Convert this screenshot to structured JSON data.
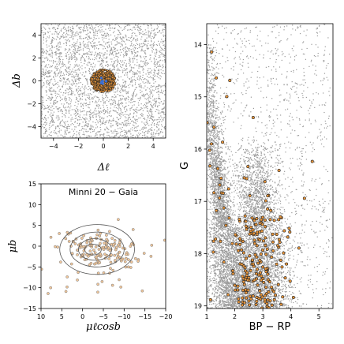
{
  "chart_data": [
    {
      "type": "scatter",
      "panel": "spatial",
      "xlabel": "Δℓ",
      "ylabel": "Δb",
      "xlim": [
        -5,
        5
      ],
      "ylim": [
        -5,
        5
      ],
      "xticks": [
        -4,
        -2,
        0,
        2,
        4
      ],
      "yticks": [
        -4,
        -2,
        0,
        2,
        4
      ],
      "xtick_labels": [
        "−4",
        "−2",
        "0",
        "2",
        "4"
      ],
      "ytick_labels": [
        "−4",
        "−2",
        "0",
        "2",
        "4"
      ],
      "series": [
        {
          "color": "#9a9a9a",
          "field_density": "uniform",
          "count": 3200
        },
        {
          "color": "#e8963c",
          "edge": "#222222",
          "center": [
            0,
            0
          ],
          "radius": 1.0,
          "count": 420
        },
        {
          "color": "#3a6fd6",
          "center": [
            -0.05,
            0.05
          ],
          "count": 6
        }
      ]
    },
    {
      "type": "scatter",
      "panel": "proper-motion",
      "annotation": "Minni 20  −  Gaia",
      "xlabel": "μℓcosb",
      "ylabel": "μb",
      "xlim": [
        10,
        -20
      ],
      "ylim": [
        -15,
        15
      ],
      "xticks": [
        10,
        5,
        0,
        -5,
        -10,
        -15,
        -20
      ],
      "yticks": [
        -15,
        -10,
        -5,
        0,
        5,
        10,
        15
      ],
      "xtick_labels": [
        "10",
        "5",
        "0",
        "−5",
        "−10",
        "−15",
        "−20"
      ],
      "ytick_labels": [
        "−15",
        "−10",
        "−5",
        "0",
        "5",
        "10",
        "15"
      ],
      "contours": [
        {
          "center": [
            -3.5,
            -0.8
          ],
          "rx": 9.0,
          "ry": 6.0
        },
        {
          "center": [
            -3.5,
            -0.8
          ],
          "rx": 6.5,
          "ry": 4.2
        },
        {
          "center": [
            -3.0,
            -0.8
          ],
          "rx": 4.0,
          "ry": 2.6
        },
        {
          "center": [
            -2.5,
            -0.8
          ],
          "rx": 2.0,
          "ry": 1.3
        }
      ],
      "series": [
        {
          "color": "#f2c79a",
          "edge": "#777777",
          "center": [
            -4,
            -1
          ],
          "spread": [
            4.5,
            3
          ],
          "count": 190
        }
      ]
    },
    {
      "type": "scatter",
      "panel": "cmd",
      "xlabel": "BP − RP",
      "ylabel": "G",
      "xlim": [
        1,
        5.5
      ],
      "ylim": [
        19.05,
        13.6
      ],
      "xticks": [
        1,
        2,
        3,
        4,
        5
      ],
      "yticks": [
        14,
        15,
        16,
        17,
        18,
        19
      ],
      "xtick_labels": [
        "1",
        "2",
        "3",
        "4",
        "5"
      ],
      "ytick_labels": [
        "14",
        "15",
        "16",
        "17",
        "18",
        "19"
      ],
      "series": [
        {
          "color": "#9a9a9a",
          "count": 9000
        },
        {
          "color": "#e8963c",
          "edge": "#222222",
          "count": 230
        }
      ]
    }
  ]
}
